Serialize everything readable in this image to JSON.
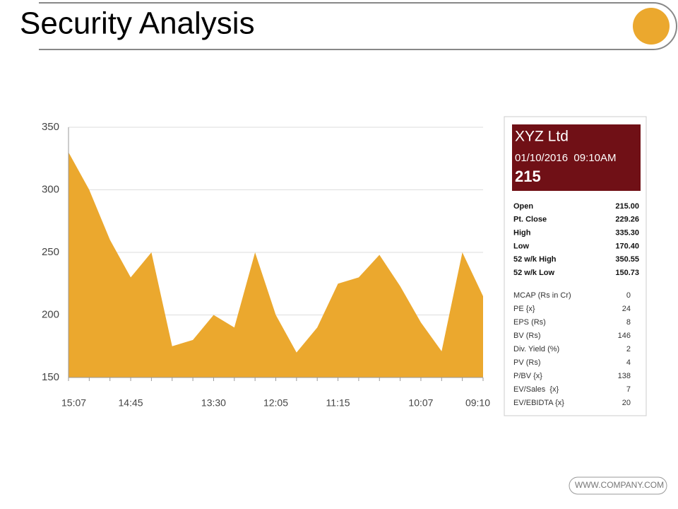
{
  "title": "Security Analysis",
  "chart_data": {
    "type": "area",
    "categories": [
      "15:07",
      null,
      null,
      "14:45",
      null,
      null,
      null,
      "13:30",
      null,
      null,
      "12:05",
      null,
      null,
      "11:15",
      null,
      null,
      null,
      "10:07",
      null,
      null,
      "09:10"
    ],
    "values": [
      330,
      300,
      260,
      230,
      250,
      175,
      180,
      200,
      190,
      250,
      200,
      170,
      190,
      225,
      230,
      248,
      223,
      194,
      171,
      250,
      215
    ],
    "color": "#eba82e",
    "ylim": [
      150,
      350
    ],
    "yticks": [
      150,
      200,
      250,
      300,
      350
    ],
    "grid": true
  },
  "panel": {
    "name": "XYZ Ltd",
    "datetime": "01/10/2016  09:10AM",
    "price": "215",
    "stats": [
      [
        "Open",
        "215.00"
      ],
      [
        "Pt. Close",
        "229.26"
      ],
      [
        "High",
        "335.30"
      ],
      [
        "Low",
        "170.40"
      ],
      [
        "52 w/k High",
        "350.55"
      ],
      [
        "52 w/k Low",
        "150.73"
      ]
    ],
    "ratios": [
      [
        "MCAP (Rs in Cr)",
        "0"
      ],
      [
        "PE {x}",
        "24"
      ],
      [
        "EPS (Rs)",
        "8"
      ],
      [
        "BV (Rs)",
        "146"
      ],
      [
        "Div. Yield (%)",
        "2"
      ],
      [
        "PV (Rs)",
        "4"
      ],
      [
        "P/BV {x}",
        "138"
      ],
      [
        "EV/Sales  {x}",
        "7"
      ],
      [
        "EV/EBIDTA {x}",
        "20"
      ]
    ]
  },
  "footer": "WWW.COMPANY.COM"
}
